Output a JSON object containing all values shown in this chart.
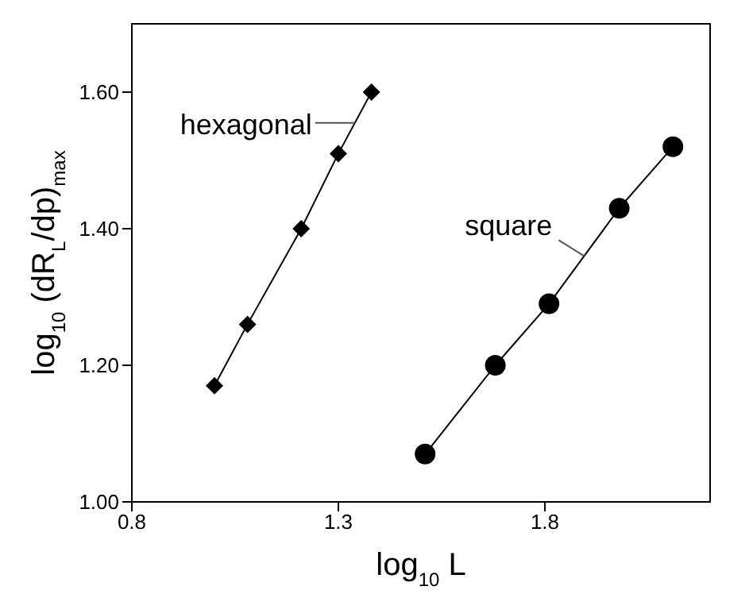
{
  "chart_data": {
    "type": "line",
    "xlabel": "log$_{10}$ L",
    "ylabel": "log$_{10}$ (dR$_{L}$/dp)$_{max}$",
    "xlim": [
      0.8,
      2.2
    ],
    "ylim": [
      1.0,
      1.7
    ],
    "xticks": [
      0.8,
      1.3,
      1.8
    ],
    "yticks": [
      {
        "value": 1.0,
        "label": "1.00"
      },
      {
        "value": 1.2,
        "label": "1.20"
      },
      {
        "value": 1.4,
        "label": "1.40"
      },
      {
        "value": 1.6,
        "label": "1.60"
      }
    ],
    "grid": false,
    "line_style": "solid",
    "series": [
      {
        "name": "hexagonal",
        "color": "#000000",
        "marker": "diamond",
        "x": [
          1.0,
          1.08,
          1.21,
          1.3,
          1.38
        ],
        "values": [
          1.17,
          1.26,
          1.4,
          1.51,
          1.6
        ]
      },
      {
        "name": "square",
        "color": "#000000",
        "marker": "circle",
        "x": [
          1.51,
          1.68,
          1.81,
          1.98,
          2.11
        ],
        "values": [
          1.07,
          1.2,
          1.29,
          1.43,
          1.52
        ]
      }
    ]
  }
}
